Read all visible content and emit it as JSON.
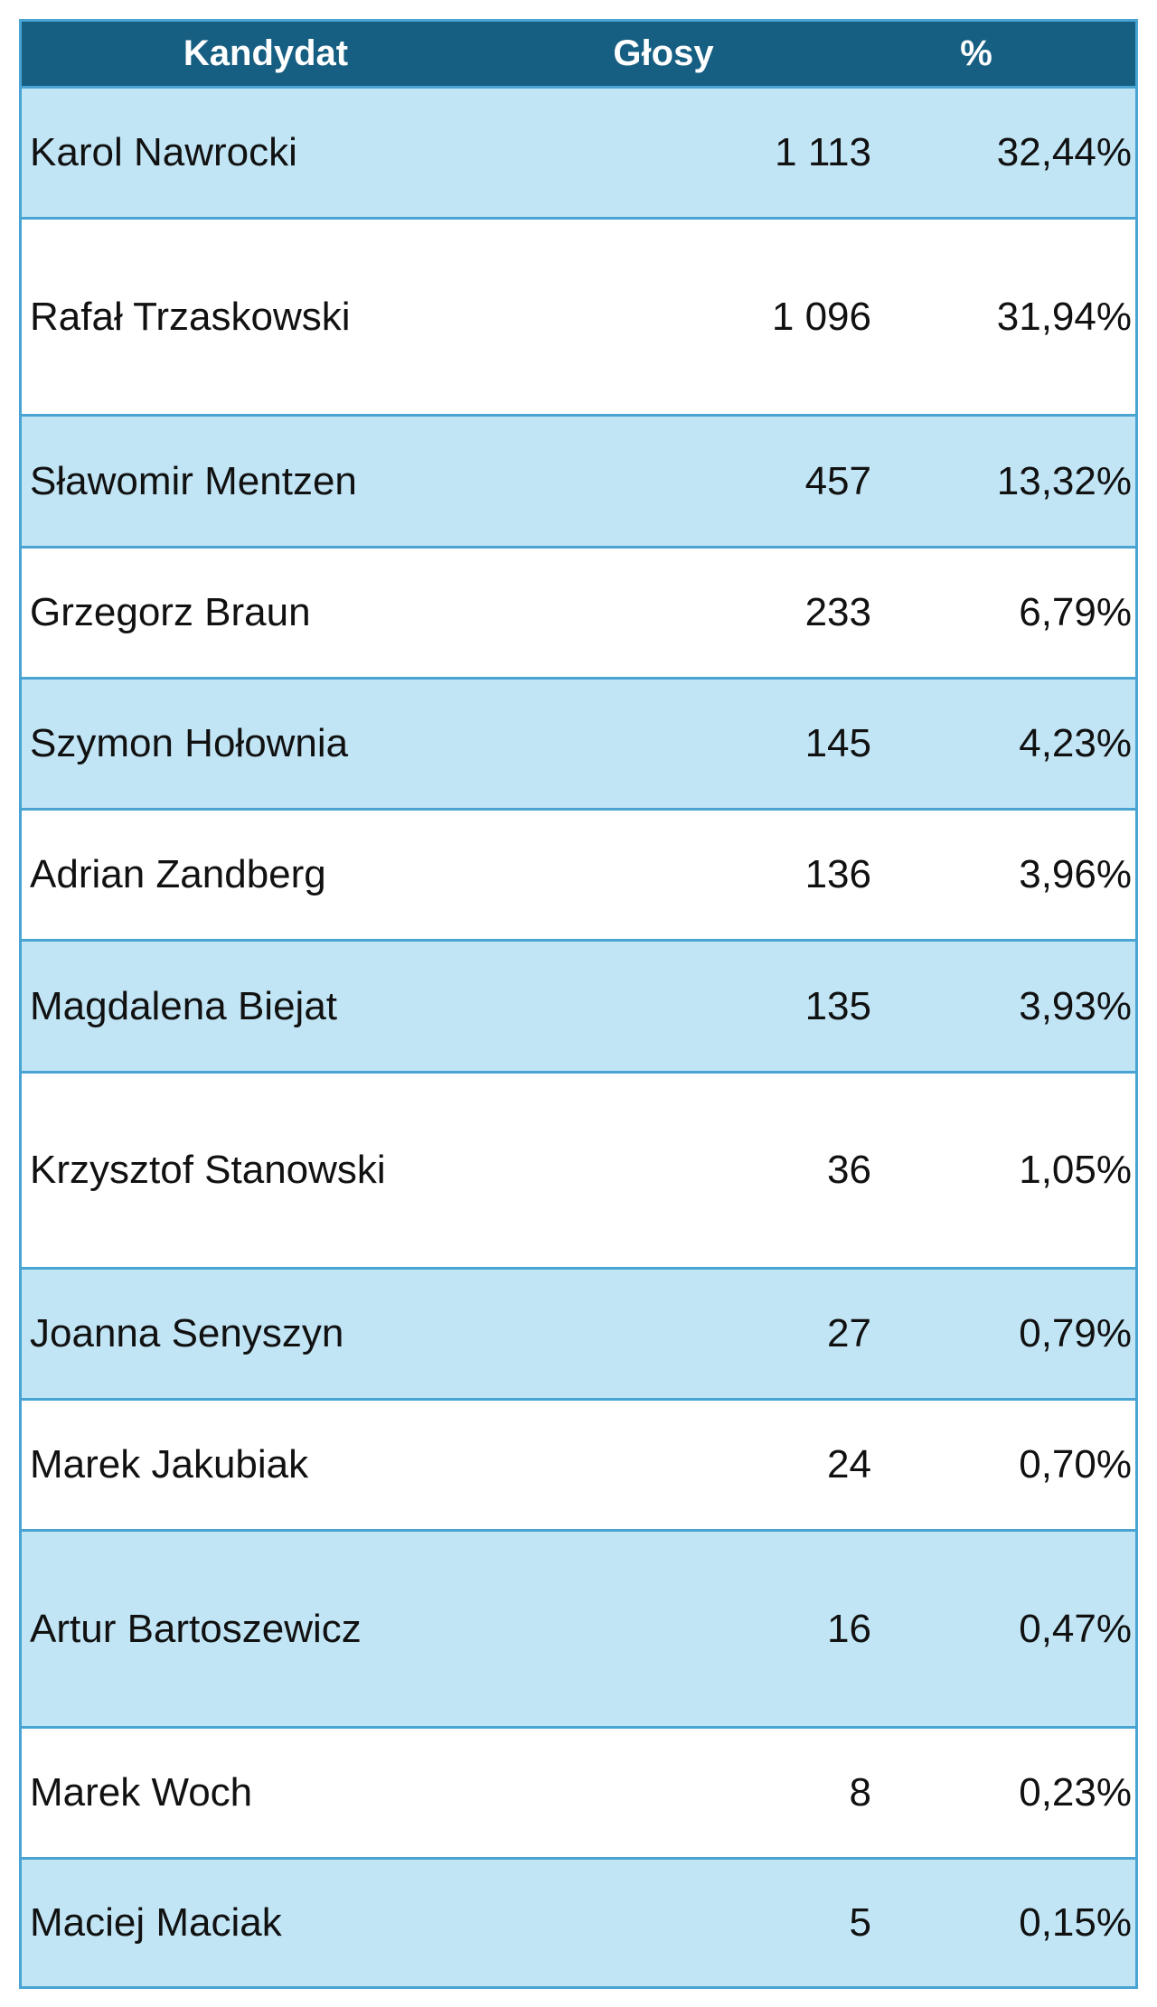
{
  "header": {
    "candidate": "Kandydat",
    "votes": "Głosy",
    "percent": "%"
  },
  "rows": [
    {
      "name": "Karol Nawrocki",
      "votes": "1 113",
      "percent": "32,44%"
    },
    {
      "name": "Rafał Trzaskowski",
      "votes": "1 096",
      "percent": "31,94%"
    },
    {
      "name": "Sławomir Mentzen",
      "votes": "457",
      "percent": "13,32%"
    },
    {
      "name": "Grzegorz Braun",
      "votes": "233",
      "percent": "6,79%"
    },
    {
      "name": "Szymon Hołownia",
      "votes": "145",
      "percent": "4,23%"
    },
    {
      "name": "Adrian Zandberg",
      "votes": "136",
      "percent": "3,96%"
    },
    {
      "name": "Magdalena Biejat",
      "votes": "135",
      "percent": "3,93%"
    },
    {
      "name": "Krzysztof Stanowski",
      "votes": "36",
      "percent": "1,05%"
    },
    {
      "name": "Joanna Senyszyn",
      "votes": "27",
      "percent": "0,79%"
    },
    {
      "name": "Marek Jakubiak",
      "votes": "24",
      "percent": "0,70%"
    },
    {
      "name": "Artur Bartoszewicz",
      "votes": "16",
      "percent": "0,47%"
    },
    {
      "name": "Marek Woch",
      "votes": "8",
      "percent": "0,23%"
    },
    {
      "name": "Maciej Maciak",
      "votes": "5",
      "percent": "0,15%"
    }
  ],
  "colors": {
    "header_bg": "#165f82",
    "header_text": "#ffffff",
    "shaded_row": "#c1e5f5",
    "plain_row": "#ffffff",
    "border": "#49a3d3"
  }
}
